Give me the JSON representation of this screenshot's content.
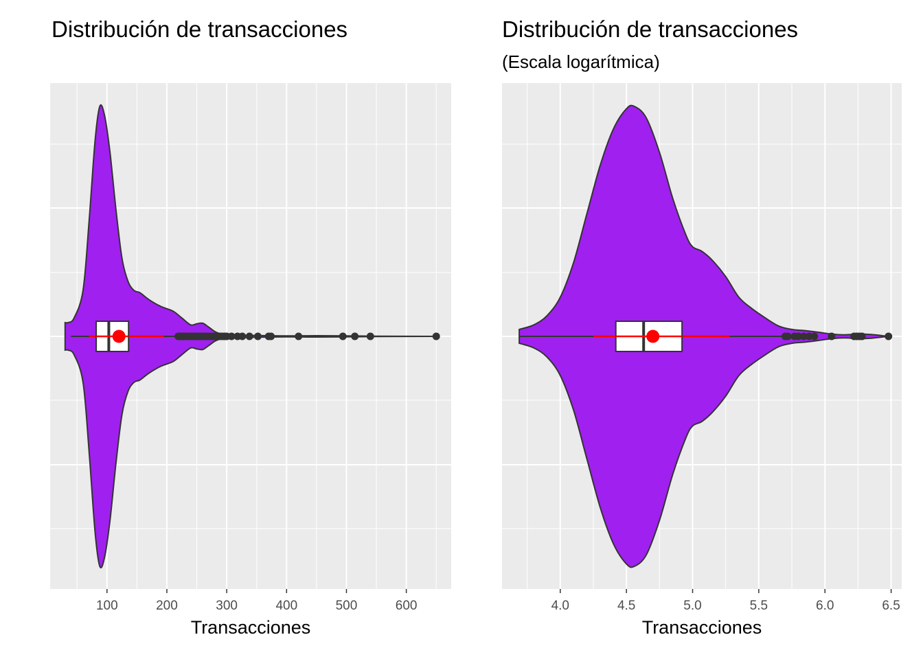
{
  "colors": {
    "panel_bg": "#ebebeb",
    "grid": "#ffffff",
    "violin_fill": "#a020f0",
    "violin_outline": "#333333",
    "box_fill": "#ffffff",
    "outlier": "#333333",
    "mean": "#ff0000"
  },
  "chart_data": [
    {
      "type": "violin",
      "title": "Distribución de transacciones",
      "subtitle": "",
      "xlabel": "Transacciones",
      "ylabel": "",
      "scale": "linear",
      "xlim": [
        5,
        675
      ],
      "xticks": [
        100,
        200,
        300,
        400,
        500,
        600
      ],
      "tick_labels": [
        "100",
        "200",
        "300",
        "400",
        "500",
        "600"
      ],
      "grid": true,
      "violin": {
        "min": 30,
        "max": 650,
        "density_profile": [
          [
            30,
            0.06
          ],
          [
            35,
            0.06
          ],
          [
            45,
            0.08
          ],
          [
            60,
            0.2
          ],
          [
            70,
            0.5
          ],
          [
            80,
            0.85
          ],
          [
            88,
            1.0
          ],
          [
            96,
            0.96
          ],
          [
            105,
            0.8
          ],
          [
            115,
            0.55
          ],
          [
            125,
            0.34
          ],
          [
            135,
            0.24
          ],
          [
            145,
            0.2
          ],
          [
            155,
            0.19
          ],
          [
            170,
            0.16
          ],
          [
            190,
            0.13
          ],
          [
            210,
            0.11
          ],
          [
            225,
            0.08
          ],
          [
            240,
            0.05
          ],
          [
            250,
            0.055
          ],
          [
            260,
            0.057
          ],
          [
            270,
            0.04
          ],
          [
            285,
            0.015
          ],
          [
            310,
            0.006
          ],
          [
            350,
            0.004
          ],
          [
            400,
            0.002
          ],
          [
            450,
            0.003
          ],
          [
            500,
            0.002
          ],
          [
            550,
            0.001
          ],
          [
            650,
            0.0
          ]
        ]
      },
      "box": {
        "whisker_low": 40,
        "q1": 82,
        "median": 103,
        "q3": 136,
        "whisker_high": 218
      },
      "mean": {
        "value": 120,
        "ci": [
          70,
          195
        ]
      },
      "outliers": [
        219,
        222,
        225,
        228,
        232,
        236,
        240,
        244,
        248,
        252,
        256,
        260,
        264,
        268,
        272,
        276,
        280,
        284,
        288,
        292,
        296,
        300,
        308,
        318,
        326,
        338,
        352,
        370,
        374,
        420,
        494,
        514,
        540,
        650
      ]
    },
    {
      "type": "violin",
      "title": "Distribución de transacciones",
      "subtitle": "(Escala logarítmica)",
      "xlabel": "Transacciones",
      "ylabel": "",
      "scale": "log",
      "xlim": [
        3.56,
        6.58
      ],
      "xticks": [
        4.0,
        4.5,
        5.0,
        5.5,
        6.0,
        6.5
      ],
      "tick_labels": [
        "4.0",
        "4.5",
        "5.0",
        "5.5",
        "6.0",
        "6.5"
      ],
      "grid": true,
      "violin": {
        "min": 3.69,
        "max": 6.48,
        "density_profile": [
          [
            3.69,
            0.03
          ],
          [
            3.8,
            0.05
          ],
          [
            3.9,
            0.09
          ],
          [
            4.0,
            0.17
          ],
          [
            4.1,
            0.32
          ],
          [
            4.2,
            0.53
          ],
          [
            4.3,
            0.74
          ],
          [
            4.4,
            0.9
          ],
          [
            4.5,
            0.99
          ],
          [
            4.56,
            1.0
          ],
          [
            4.65,
            0.95
          ],
          [
            4.75,
            0.8
          ],
          [
            4.85,
            0.6
          ],
          [
            4.95,
            0.44
          ],
          [
            5.0,
            0.39
          ],
          [
            5.07,
            0.37
          ],
          [
            5.15,
            0.33
          ],
          [
            5.25,
            0.26
          ],
          [
            5.35,
            0.17
          ],
          [
            5.45,
            0.12
          ],
          [
            5.55,
            0.08
          ],
          [
            5.65,
            0.045
          ],
          [
            5.75,
            0.03
          ],
          [
            5.85,
            0.025
          ],
          [
            5.95,
            0.018
          ],
          [
            6.05,
            0.01
          ],
          [
            6.15,
            0.007
          ],
          [
            6.25,
            0.01
          ],
          [
            6.35,
            0.008
          ],
          [
            6.48,
            0.0
          ]
        ]
      },
      "box": {
        "whisker_low": 3.69,
        "q1": 4.42,
        "median": 4.63,
        "q3": 4.92,
        "whisker_high": 5.68
      },
      "mean": {
        "value": 4.7,
        "ci": [
          4.25,
          5.28
        ]
      },
      "outliers": [
        5.7,
        5.72,
        5.77,
        5.8,
        5.84,
        5.88,
        5.92,
        6.05,
        6.22,
        6.24,
        6.26,
        6.28,
        6.48
      ]
    }
  ]
}
